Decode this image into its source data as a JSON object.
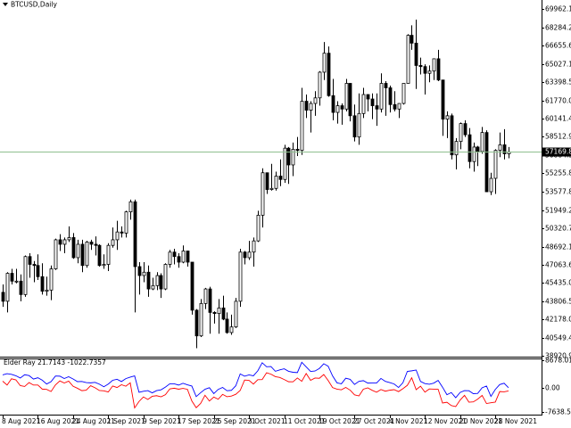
{
  "header": {
    "symbol": "BTCUSD,Daily"
  },
  "chart_data": [
    {
      "type": "candlestick",
      "categories": [
        "8 Aug 2021",
        null,
        null,
        null,
        null,
        null,
        null,
        null,
        "16 Aug 2021",
        null,
        null,
        null,
        null,
        null,
        null,
        null,
        "24 Aug 2021",
        null,
        null,
        null,
        null,
        null,
        null,
        null,
        "1 Sep 2021",
        null,
        null,
        null,
        null,
        null,
        null,
        null,
        "9 Sep 2021",
        null,
        null,
        null,
        null,
        null,
        null,
        null,
        "17 Sep 2021",
        null,
        null,
        null,
        null,
        null,
        null,
        null,
        "25 Sep 2021",
        null,
        null,
        null,
        null,
        null,
        null,
        null,
        "3 Oct 2021",
        null,
        null,
        null,
        null,
        null,
        null,
        null,
        "11 Oct 2021",
        null,
        null,
        null,
        null,
        null,
        null,
        null,
        "19 Oct 2021",
        null,
        null,
        null,
        null,
        null,
        null,
        null,
        "27 Oct 2021",
        null,
        null,
        null,
        null,
        null,
        null,
        null,
        "4 Nov 2021",
        null,
        null,
        null,
        null,
        null,
        null,
        null,
        "12 Nov 2021",
        null,
        null,
        null,
        null,
        null,
        null,
        null,
        "20 Nov 2021",
        null,
        null,
        null,
        null,
        null,
        null,
        null,
        "28 Nov 2021",
        null,
        null,
        null
      ],
      "open": [
        44600,
        43800,
        46300,
        45600,
        45600,
        44400,
        47800,
        47100,
        47000,
        46000,
        44700,
        44800,
        46700,
        49300,
        48900,
        49300,
        49500,
        47700,
        48900,
        47000,
        49100,
        48900,
        48800,
        47000,
        47100,
        48800,
        49300,
        50000,
        49900,
        51800,
        52700,
        46900,
        46100,
        46400,
        44900,
        45200,
        46100,
        44900,
        47100,
        48200,
        47800,
        47300,
        48300,
        47300,
        43000,
        40700,
        43600,
        44900,
        42800,
        42700,
        43200,
        42200,
        41000,
        41500,
        43800,
        48200,
        47700,
        48200,
        49200,
        51500,
        55300,
        53800,
        53900,
        55000,
        54700,
        57500,
        56000,
        57400,
        57300,
        61700,
        60900,
        61500,
        62000,
        64300,
        66000,
        62200,
        60700,
        61300,
        61000,
        63300,
        60400,
        58500,
        60600,
        62300,
        61900,
        61300,
        61000,
        63300,
        62900,
        61400,
        61000,
        61500,
        63300,
        67600,
        66900,
        64900,
        64800,
        64200,
        64400,
        65500,
        63600,
        60100,
        60400,
        56900,
        58100,
        59700,
        58700,
        56300,
        57600,
        57200,
        58900,
        53600,
        54800,
        57300,
        57800,
        57000
      ],
      "high": [
        45300,
        46400,
        46700,
        46700,
        46200,
        47900,
        48100,
        47400,
        48000,
        47200,
        46000,
        47000,
        49400,
        49800,
        49500,
        50500,
        49900,
        49300,
        49300,
        49200,
        49300,
        49600,
        48900,
        48000,
        49000,
        50400,
        51000,
        50500,
        51900,
        52900,
        52900,
        47300,
        47300,
        47000,
        45900,
        46400,
        46300,
        47200,
        48400,
        48500,
        48100,
        48800,
        48300,
        47300,
        43100,
        44000,
        45000,
        45100,
        42900,
        44000,
        44300,
        42800,
        42600,
        44100,
        48500,
        48300,
        49200,
        49500,
        51900,
        55700,
        55300,
        56100,
        55400,
        56500,
        57800,
        57600,
        58000,
        58500,
        62900,
        62300,
        61700,
        62600,
        64400,
        67000,
        66600,
        63700,
        61700,
        61500,
        63700,
        63300,
        61400,
        62400,
        62900,
        62300,
        62400,
        62400,
        64200,
        63500,
        63100,
        62600,
        61500,
        63300,
        67700,
        68500,
        69000,
        65600,
        65000,
        64900,
        65500,
        66300,
        63600,
        60800,
        60600,
        58400,
        59800,
        60000,
        59300,
        58000,
        57700,
        59400,
        59100,
        55300,
        57400,
        58900,
        59200,
        57600
      ],
      "low": [
        43300,
        42800,
        45300,
        45400,
        43800,
        44200,
        45900,
        45500,
        45700,
        44400,
        44300,
        43900,
        46600,
        48300,
        48100,
        49100,
        47600,
        47200,
        46400,
        46800,
        48400,
        47900,
        46900,
        46700,
        46500,
        48600,
        48400,
        49500,
        49500,
        51100,
        42800,
        44400,
        45500,
        44200,
        44800,
        44800,
        44100,
        44800,
        46800,
        47100,
        46800,
        47200,
        46900,
        42600,
        39600,
        40600,
        43100,
        40900,
        41800,
        40900,
        42100,
        40900,
        40800,
        41400,
        43300,
        47100,
        47500,
        46900,
        49100,
        50400,
        53400,
        53700,
        53700,
        54100,
        54400,
        54300,
        55000,
        56800,
        56900,
        60200,
        58900,
        60400,
        61300,
        63600,
        62100,
        60000,
        59700,
        59600,
        60800,
        59900,
        58100,
        57800,
        60200,
        60800,
        60100,
        59500,
        60700,
        60400,
        60700,
        60800,
        60200,
        61400,
        63300,
        66300,
        62800,
        64100,
        62300,
        63400,
        63600,
        63500,
        58600,
        58400,
        56500,
        55600,
        57400,
        58500,
        55700,
        55400,
        55900,
        57000,
        53600,
        53300,
        53400,
        56700,
        56500,
        56600
      ],
      "close": [
        43800,
        46300,
        45600,
        45600,
        44400,
        47800,
        47100,
        47000,
        46000,
        44700,
        44800,
        46700,
        49300,
        48900,
        49300,
        49500,
        47700,
        48900,
        47000,
        49100,
        48900,
        48800,
        47000,
        47100,
        48800,
        49300,
        50000,
        49900,
        51800,
        52700,
        46900,
        46100,
        46400,
        44900,
        45200,
        46100,
        44900,
        47100,
        48200,
        47800,
        47300,
        48300,
        47300,
        43000,
        40700,
        43600,
        44900,
        42800,
        42700,
        43200,
        42200,
        41000,
        41500,
        43800,
        48200,
        47700,
        48200,
        49200,
        51500,
        55300,
        53800,
        53900,
        55000,
        54700,
        57500,
        56000,
        57400,
        57300,
        61700,
        60900,
        61500,
        62000,
        64300,
        66000,
        62200,
        60700,
        61300,
        61000,
        63300,
        60400,
        58500,
        60600,
        62300,
        61900,
        61300,
        61000,
        63300,
        62900,
        61400,
        61000,
        61500,
        63300,
        67600,
        66900,
        64900,
        64800,
        64200,
        64400,
        65500,
        63600,
        60100,
        60400,
        56900,
        58100,
        59700,
        58700,
        56300,
        57600,
        57200,
        58900,
        53600,
        54800,
        57300,
        57800,
        57000,
        57169.8
      ],
      "up_color": "#ffffff",
      "down_color": "#000000",
      "edge_color": "#000000",
      "ylim": [
        38841,
        70760
      ],
      "yticks": [
        {
          "value": 69962.1,
          "label": "69962.10"
        },
        {
          "value": 68284.2,
          "label": "68284.20"
        },
        66655.65,
        65027.1,
        63398.55,
        {
          "value": 61770,
          "label": "61770.00"
        },
        60141.45,
        {
          "value": 58512.9,
          "label": "58512.90"
        },
        56884.35,
        {
          "value": 55255.8,
          "label": "55255.80"
        },
        {
          "value": 53577.8,
          "label": "53577.80"
        },
        51949.25,
        {
          "value": 50320.7,
          "label": "50320.70"
        },
        48692.15,
        {
          "value": 47063.6,
          "label": "47063.60"
        },
        45435.05,
        {
          "value": 43806.5,
          "label": "43806.50"
        },
        {
          "value": 42178,
          "label": "42178.00"
        },
        40549.45,
        {
          "value": 38920.9,
          "label": "38920.90"
        }
      ],
      "current_price": {
        "value": 57169.8,
        "label": "57169.80",
        "color": "#8fbf8f"
      }
    },
    {
      "type": "line",
      "title": "Elder Ray 21.7143 -1022.7357",
      "series": [
        {
          "color": "#0000ff",
          "values": [
            4070,
            4450,
            4220,
            3780,
            3070,
            4100,
            3830,
            2740,
            3150,
            2370,
            1170,
            1910,
            3700,
            3650,
            2900,
            3480,
            2780,
            1930,
            1980,
            1630,
            1540,
            1690,
            1120,
            320,
            1160,
            2350,
            2670,
            1950,
            2880,
            3360,
            3730,
            -1430,
            -1100,
            -900,
            -1610,
            -910,
            -660,
            220,
            1240,
            1250,
            840,
            1400,
            910,
            540,
            -2800,
            -1570,
            -470,
            10,
            -1850,
            -530,
            110,
            -940,
            -820,
            630,
            4350,
            3640,
            4040,
            3760,
            5340,
            7890,
            6630,
            6680,
            5190,
            5640,
            5990,
            5190,
            4880,
            4780,
            8040,
            6580,
            5150,
            5270,
            6080,
            7580,
            6780,
            3750,
            1560,
            1240,
            3000,
            2650,
            1050,
            2020,
            2240,
            1470,
            1500,
            1490,
            2940,
            2010,
            1620,
            1190,
            80,
            1610,
            5160,
            5340,
            5590,
            1990,
            1310,
            1110,
            1460,
            2330,
            180,
            -2190,
            -1520,
            -3140,
            -1480,
            -910,
            -950,
            -1870,
            -1790,
            -10,
            520,
            -2740,
            -530,
            990,
            1420,
            21.7143
          ]
        },
        {
          "color": "#ff0000",
          "values": [
            2070,
            850,
            2820,
            2480,
            670,
            400,
            1630,
            840,
            850,
            -430,
            -530,
            -1200,
            900,
            2150,
            1500,
            2080,
            480,
            -170,
            -920,
            -770,
            640,
            -10,
            -880,
            -980,
            -1340,
            550,
            70,
            950,
            480,
            1560,
            -6370,
            -4330,
            -2900,
            -3700,
            -2710,
            -2510,
            -2860,
            -2180,
            -360,
            -150,
            -460,
            -210,
            -490,
            -4160,
            -6300,
            -4970,
            -2370,
            -4190,
            -2950,
            -3630,
            -2090,
            -2840,
            -2620,
            -2070,
            -850,
            2440,
            2340,
            1160,
            2540,
            2590,
            4730,
            4280,
            3490,
            3240,
            2590,
            1890,
            1880,
            3080,
            2040,
            4480,
            2350,
            3070,
            2980,
            4180,
            2280,
            50,
            -440,
            -660,
            100,
            -760,
            -2250,
            -2580,
            -460,
            -40,
            -800,
            -1420,
            -560,
            -1090,
            -780,
            -610,
            -1220,
            -290,
            760,
            3140,
            -610,
            490,
            -1390,
            -390,
            -440,
            -480,
            -4820,
            -4590,
            -5620,
            -5940,
            -3880,
            -2410,
            -4550,
            -4470,
            -3590,
            -2410,
            -4980,
            -4740,
            -4530,
            -1210,
            -1280,
            -1022.7357
          ]
        }
      ],
      "ylim": [
        -7638.5657,
        8678.0168
      ],
      "yticks": [
        8678.0168,
        {
          "value": 0,
          "label": "0.00"
        },
        -7638.5657
      ]
    }
  ]
}
